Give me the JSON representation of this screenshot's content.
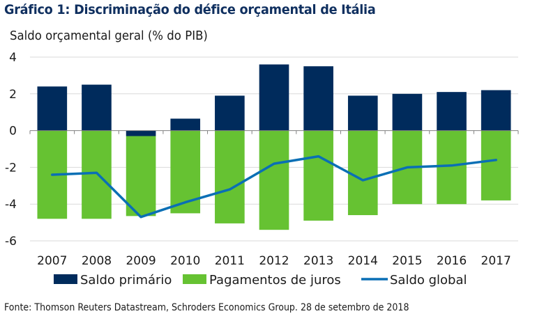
{
  "title": "Gráfico 1: Discriminação do défice orçamental de Itália",
  "source": "Fonte: Thomson Reuters Datastream, Schroders Economics Group. 28 de setembro de 2018",
  "colors": {
    "title": "#0f2f5f",
    "saldo_primario": "#002b5c",
    "pagamentos_juros": "#66c232",
    "saldo_global": "#0a6fb5",
    "grid": "#d9d9d9",
    "axis": "#808080"
  },
  "chart_data": {
    "type": "bar",
    "stacked": true,
    "title": "Gráfico 1: Discriminação do défice orçamental de Itália",
    "xlabel": "",
    "ylabel": "Saldo orçamental geral (% do PIB)",
    "ylim": [
      -6,
      4
    ],
    "yticks": [
      4,
      2,
      0,
      -2,
      -4,
      -6
    ],
    "grid": true,
    "legend_position": "bottom",
    "categories": [
      "2007",
      "2008",
      "2009",
      "2010",
      "2011",
      "2012",
      "2013",
      "2014",
      "2015",
      "2016",
      "2017"
    ],
    "series": [
      {
        "name": "Saldo primário",
        "kind": "bar",
        "values": [
          2.4,
          2.5,
          -0.3,
          0.65,
          1.9,
          3.6,
          3.5,
          1.9,
          2.0,
          2.1,
          2.2
        ]
      },
      {
        "name": "Pagamentos de juros",
        "kind": "bar",
        "values": [
          -4.8,
          -4.8,
          -4.35,
          -4.5,
          -5.05,
          -5.4,
          -4.9,
          -4.6,
          -4.0,
          -4.0,
          -3.8
        ]
      },
      {
        "name": "Saldo global",
        "kind": "line",
        "values": [
          -2.4,
          -2.3,
          -4.7,
          -3.9,
          -3.2,
          -1.8,
          -1.4,
          -2.7,
          -2.0,
          -1.9,
          -1.6
        ]
      }
    ]
  }
}
